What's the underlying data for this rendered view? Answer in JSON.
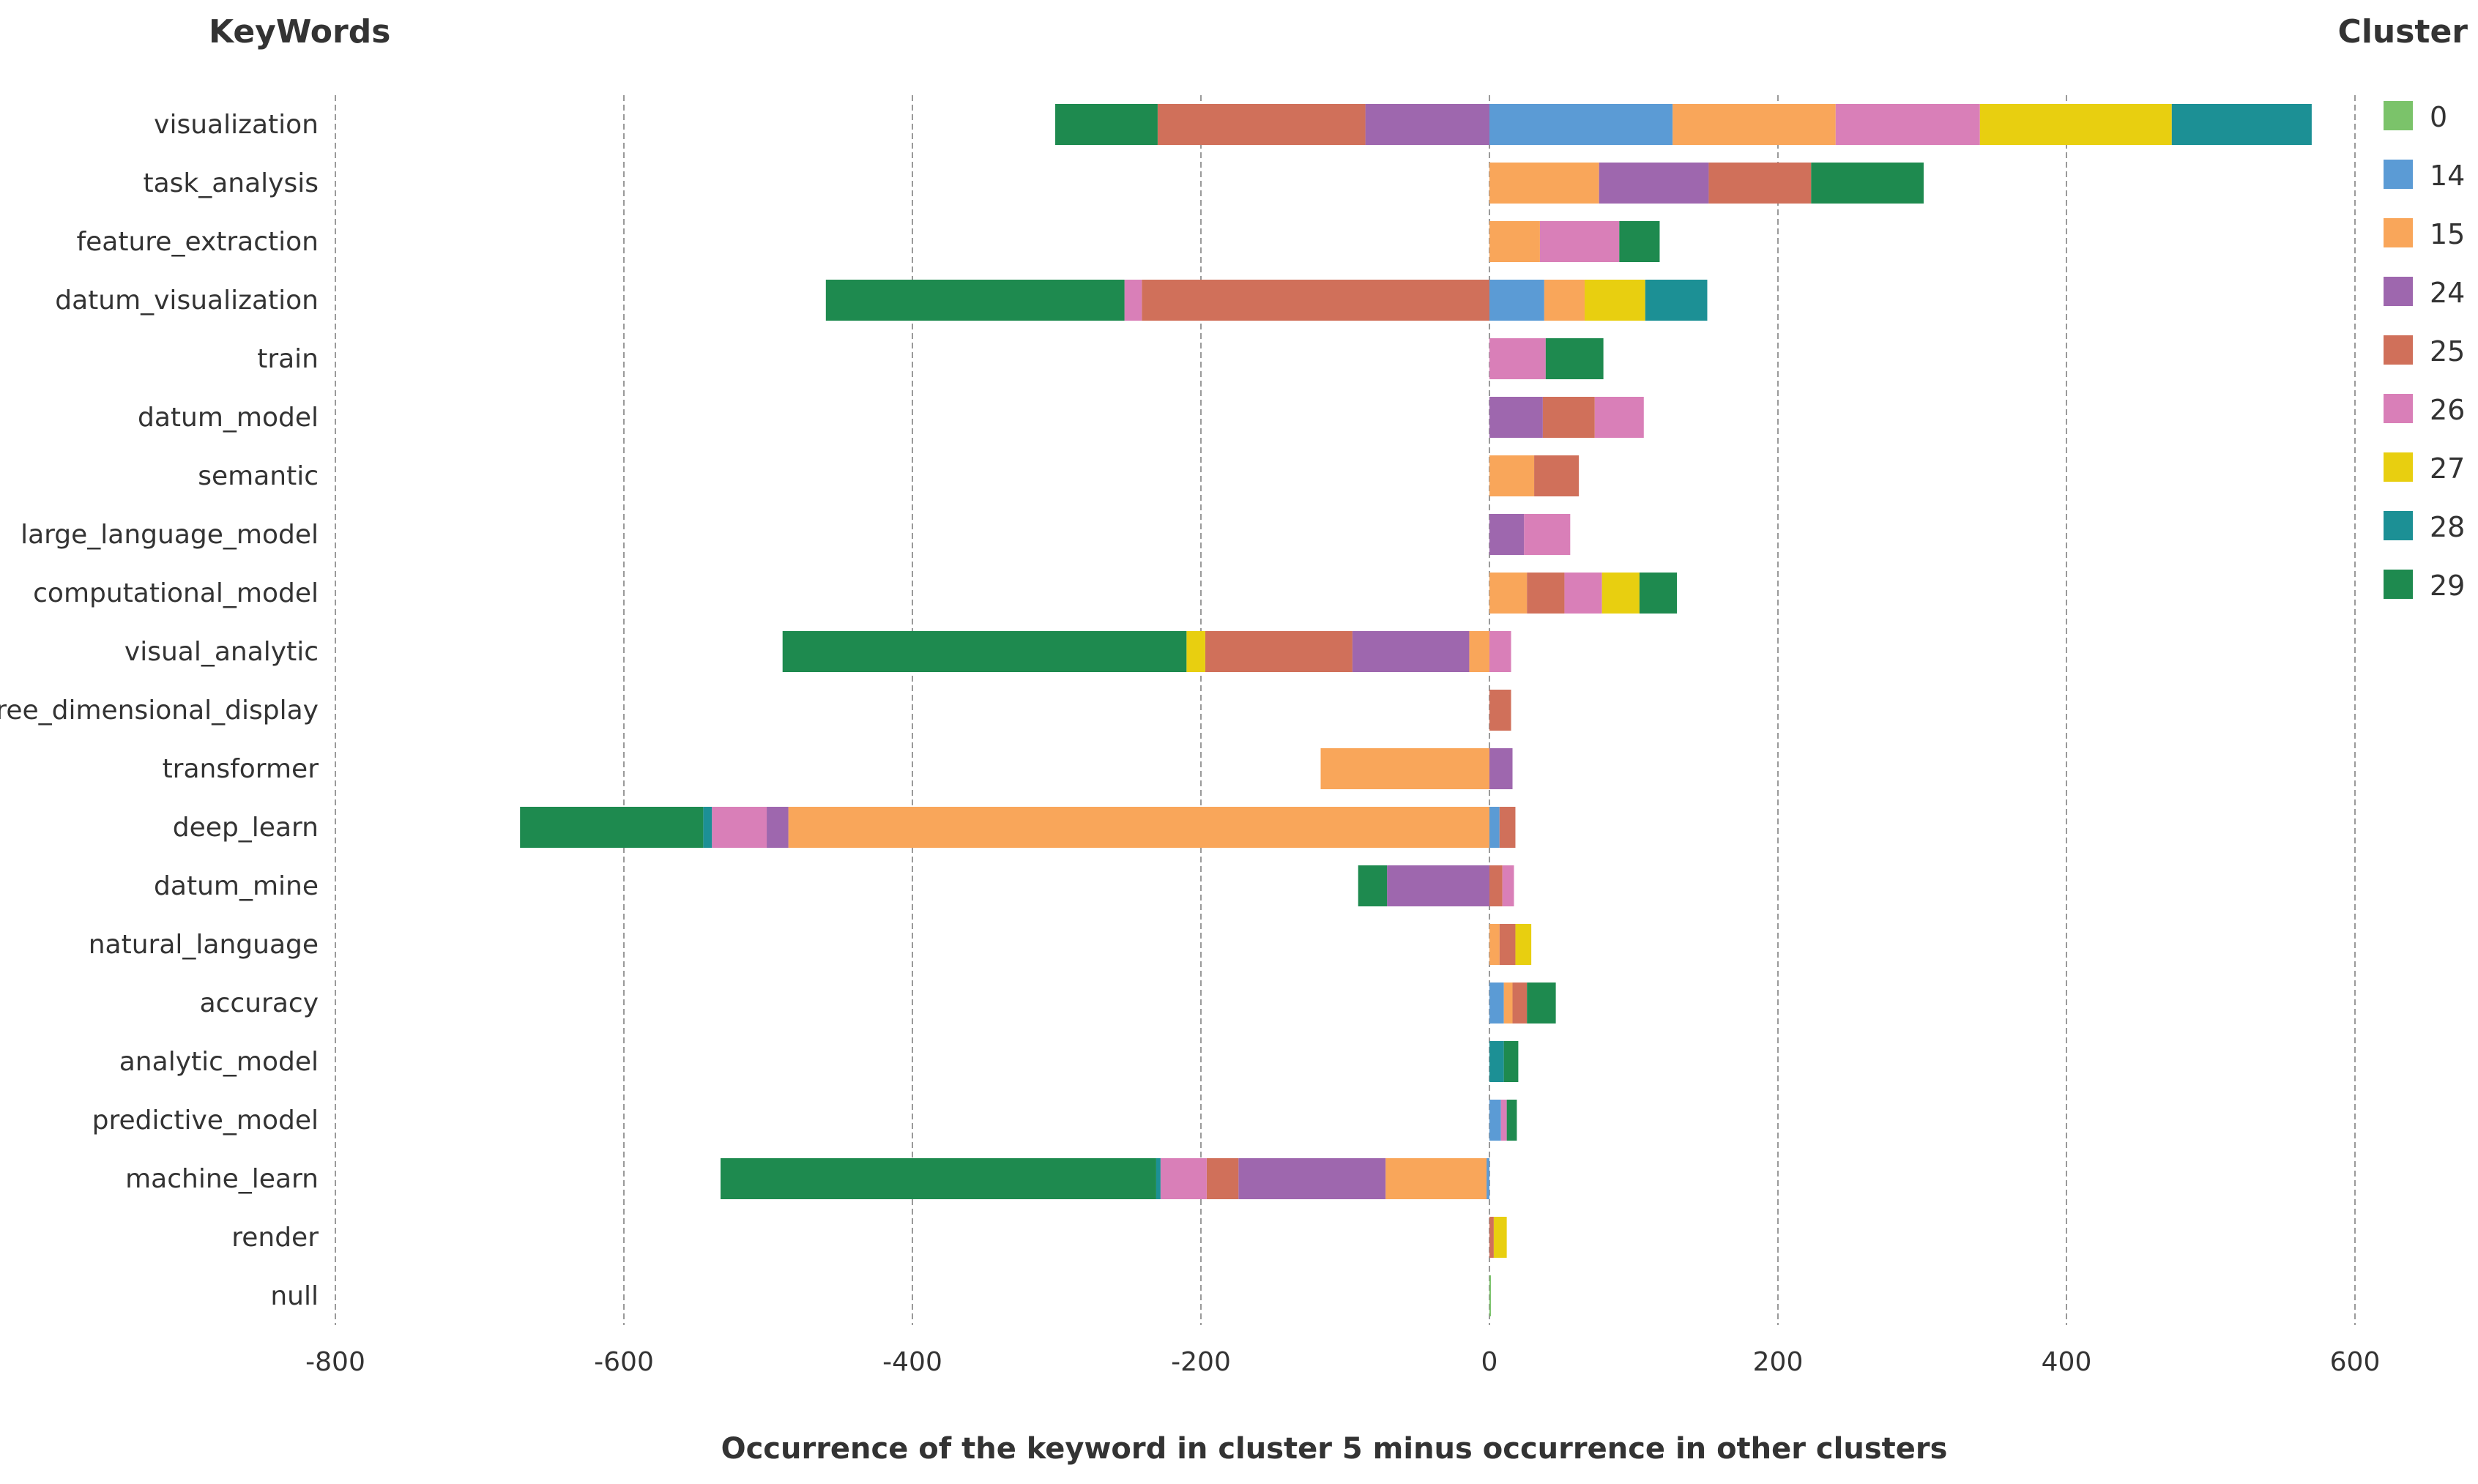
{
  "chart_data": {
    "type": "bar",
    "orientation": "horizontal",
    "stacked": "diverging",
    "yheader": "KeyWords",
    "legend_title": "Cluster",
    "legend_position": "right",
    "xlabel": "Occurrence of the keyword in cluster 5 minus occurrence in other clusters",
    "xlim": [
      -800,
      600
    ],
    "xticks": [
      -800,
      -600,
      -400,
      -200,
      0,
      200,
      400,
      600
    ],
    "grid": "vertical dashed",
    "categories": [
      "visualization",
      "task_analysis",
      "feature_extraction",
      "datum_visualization",
      "train",
      "datum_model",
      "semantic",
      "large_language_model",
      "computational_model",
      "visual_analytic",
      "three_dimensional_display",
      "transformer",
      "deep_learn",
      "datum_mine",
      "natural_language",
      "accuracy",
      "analytic_model",
      "predictive_model",
      "machine_learn",
      "render",
      "null"
    ],
    "series": [
      {
        "name": "0",
        "color": "#7bc36a",
        "values": [
          0,
          0,
          0,
          0,
          0,
          0,
          0,
          0,
          0,
          0,
          0,
          0,
          0,
          0,
          0,
          0,
          0,
          0,
          0,
          0,
          1
        ]
      },
      {
        "name": "14",
        "color": "#5b9bd5",
        "values": [
          127,
          0,
          0,
          38,
          0,
          0,
          0,
          0,
          0,
          0,
          0,
          0,
          7,
          0,
          0,
          10,
          0,
          8,
          -2,
          0,
          0
        ]
      },
      {
        "name": "15",
        "color": "#f9a65a",
        "values": [
          113,
          76,
          35,
          28,
          0,
          0,
          31,
          0,
          26,
          -14,
          0,
          -117,
          -486,
          0,
          7,
          6,
          0,
          0,
          -70,
          0,
          0
        ]
      },
      {
        "name": "24",
        "color": "#9e67ae",
        "values": [
          -86,
          76,
          0,
          0,
          0,
          37,
          0,
          24,
          0,
          -81,
          0,
          16,
          -15,
          -71,
          0,
          0,
          0,
          0,
          -102,
          0,
          0
        ]
      },
      {
        "name": "25",
        "color": "#d0705a",
        "values": [
          -144,
          71,
          0,
          -241,
          0,
          36,
          31,
          0,
          26,
          -102,
          15,
          0,
          11,
          9,
          11,
          10,
          0,
          0,
          -22,
          3,
          0
        ]
      },
      {
        "name": "26",
        "color": "#d97fb8",
        "values": [
          100,
          0,
          55,
          -12,
          39,
          34,
          0,
          32,
          26,
          15,
          0,
          0,
          -38,
          8,
          0,
          0,
          0,
          4,
          -32,
          0,
          0
        ]
      },
      {
        "name": "27",
        "color": "#e8cf10",
        "values": [
          133,
          0,
          0,
          42,
          0,
          0,
          0,
          0,
          26,
          -13,
          0,
          0,
          0,
          0,
          11,
          0,
          0,
          0,
          0,
          9,
          0
        ]
      },
      {
        "name": "28",
        "color": "#1c9095",
        "values": [
          97,
          0,
          0,
          43,
          0,
          0,
          0,
          0,
          0,
          0,
          0,
          0,
          -6,
          0,
          0,
          0,
          10,
          0,
          -3,
          0,
          0
        ]
      },
      {
        "name": "29",
        "color": "#1e8a4f",
        "values": [
          -71,
          78,
          28,
          -207,
          40,
          0,
          0,
          0,
          26,
          -280,
          0,
          0,
          -127,
          -20,
          0,
          20,
          10,
          7,
          -302,
          0,
          0
        ]
      }
    ]
  }
}
